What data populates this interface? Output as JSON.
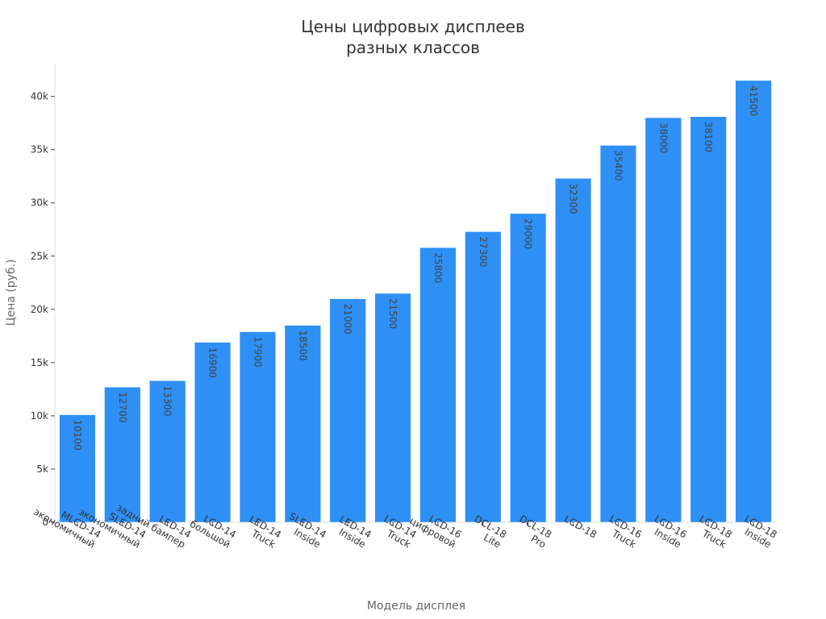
{
  "chart_data": {
    "type": "bar",
    "title_lines": [
      "Цены цифровых дисплеев",
      "разных классов"
    ],
    "xlabel": "Модель дисплея",
    "ylabel": "Цена (руб.)",
    "ylim": [
      0,
      43000
    ],
    "yticks": [
      0,
      5000,
      10000,
      15000,
      20000,
      25000,
      30000,
      35000,
      40000
    ],
    "ytick_labels": [
      "0",
      "5k",
      "10k",
      "15k",
      "20k",
      "25k",
      "30k",
      "35k",
      "40k"
    ],
    "grid": false,
    "bar_color": "#2e90f5",
    "categories": [
      [
        "MLCD-14",
        "экономичный"
      ],
      [
        "SLED-14",
        "экономичный"
      ],
      [
        "LED-14",
        "задний бампер"
      ],
      [
        "LCD-14",
        "большой"
      ],
      [
        "LED-14",
        "Truck"
      ],
      [
        "SLED-14",
        "Inside"
      ],
      [
        "LED-14",
        "Inside"
      ],
      [
        "LCD-14",
        "Truck"
      ],
      [
        "LCD-16",
        "цифровой"
      ],
      [
        "DCL-18",
        "Lite"
      ],
      [
        "DCL-18",
        "Pro"
      ],
      [
        "LCD-18"
      ],
      [
        "LCD-16",
        "Truck"
      ],
      [
        "LCD-16",
        "Inside"
      ],
      [
        "LCD-18",
        "Truck"
      ],
      [
        "LCD-18",
        "Inside"
      ]
    ],
    "values": [
      10100,
      12700,
      13300,
      16900,
      17900,
      18500,
      21000,
      21500,
      25800,
      27300,
      29000,
      32300,
      35400,
      38000,
      38100,
      41500
    ]
  }
}
